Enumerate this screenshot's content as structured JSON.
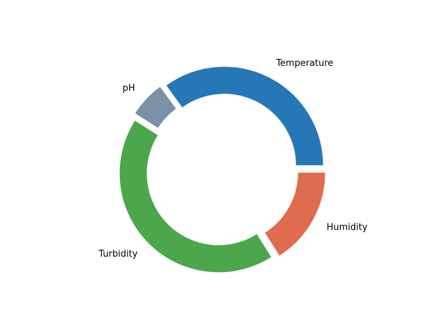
{
  "chart_data": {
    "type": "pie",
    "title": "",
    "slices": [
      {
        "label": "Humidity",
        "value": 16,
        "color": "#e06c4f"
      },
      {
        "label": "Turbidity",
        "value": 43,
        "color": "#4ca64c"
      },
      {
        "label": "pH",
        "value": 6,
        "color": "#7a91a8"
      },
      {
        "label": "Temperature",
        "value": 35,
        "color": "#2677b5"
      }
    ],
    "donut": true,
    "start_angle_deg": 0,
    "direction": "clockwise",
    "exploded": true,
    "legend": "none"
  }
}
